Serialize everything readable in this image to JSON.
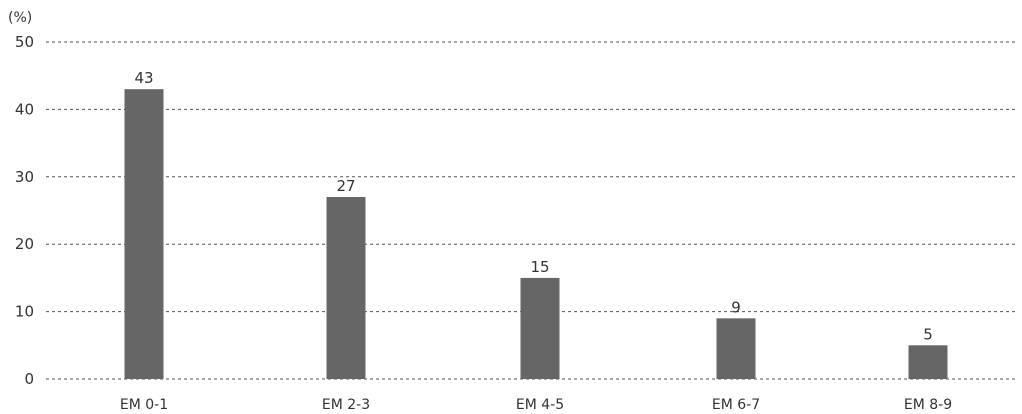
{
  "chart_data": {
    "type": "bar",
    "unit_label": "(%)",
    "categories": [
      "EM 0-1",
      "EM 2-3",
      "EM 4-5",
      "EM 6-7",
      "EM 8-9"
    ],
    "values": [
      43,
      27,
      15,
      9,
      5
    ],
    "data_labels": [
      "43",
      "27",
      "15",
      "9",
      "5"
    ],
    "ylim": [
      0,
      50
    ],
    "yticks": [
      0,
      10,
      20,
      30,
      40,
      50
    ],
    "ytick_labels": [
      "0",
      "10",
      "20",
      "30",
      "40",
      "50"
    ],
    "grid": true,
    "legend": "none",
    "bar_color": "#666666",
    "grid_color": "#555555"
  }
}
